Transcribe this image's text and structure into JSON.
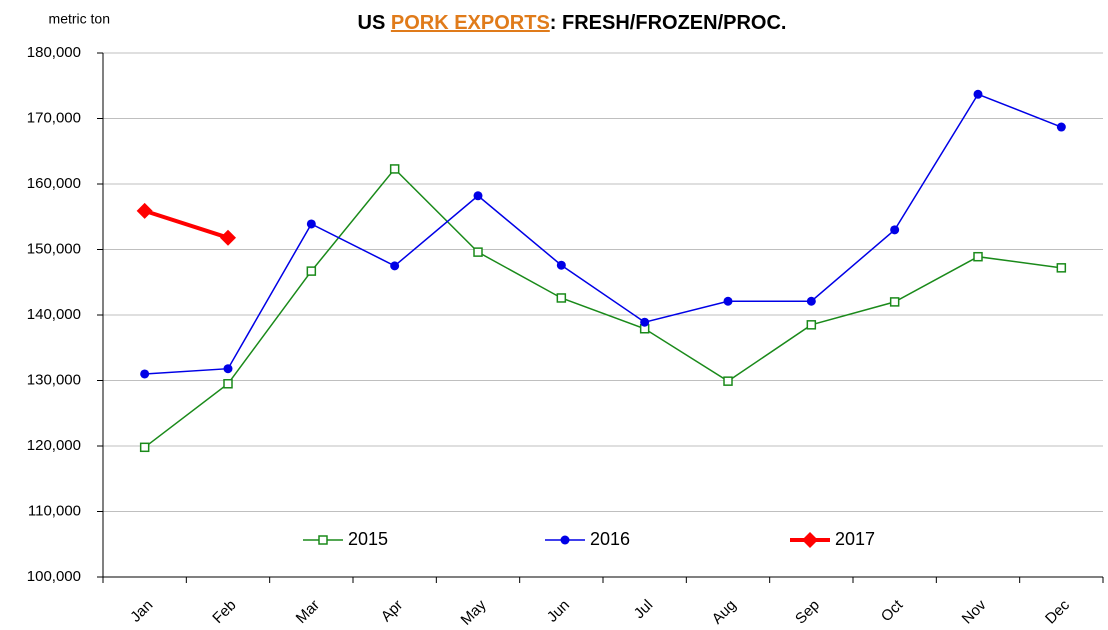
{
  "chart_data": {
    "type": "line",
    "title_parts": [
      "US ",
      "PORK EXPORTS",
      ": FRESH/FROZEN/PROC."
    ],
    "title_highlight_color": "#e07b1a",
    "y_label": "metric ton",
    "categories": [
      "Jan",
      "Feb",
      "Mar",
      "Apr",
      "May",
      "Jun",
      "Jul",
      "Aug",
      "Sep",
      "Oct",
      "Nov",
      "Dec"
    ],
    "series": [
      {
        "name": "2015",
        "color": "#1a8a1a",
        "marker": "square",
        "width": 1.5,
        "values": [
          119800,
          129500,
          146700,
          162300,
          149600,
          142600,
          137900,
          129900,
          138500,
          142000,
          148900,
          147200
        ]
      },
      {
        "name": "2016",
        "color": "#0000e6",
        "marker": "circle",
        "width": 1.5,
        "values": [
          131000,
          131800,
          153900,
          147500,
          158200,
          147600,
          138900,
          142100,
          142100,
          153000,
          173700,
          168700
        ]
      },
      {
        "name": "2017",
        "color": "#ff0000",
        "marker": "diamond",
        "width": 4,
        "values": [
          155900,
          151800,
          null,
          null,
          null,
          null,
          null,
          null,
          null,
          null,
          null,
          null
        ]
      }
    ],
    "ylim": [
      100000,
      180000
    ],
    "yticks": [
      {
        "value": 100000,
        "label": "100,000"
      },
      {
        "value": 110000,
        "label": "110,000"
      },
      {
        "value": 120000,
        "label": "120,000"
      },
      {
        "value": 130000,
        "label": "130,000"
      },
      {
        "value": 140000,
        "label": "140,000"
      },
      {
        "value": 150000,
        "label": "150,000"
      },
      {
        "value": 160000,
        "label": "160,000"
      },
      {
        "value": 170000,
        "label": "170,000"
      },
      {
        "value": 180000,
        "label": "180,000"
      }
    ],
    "grid": true
  }
}
